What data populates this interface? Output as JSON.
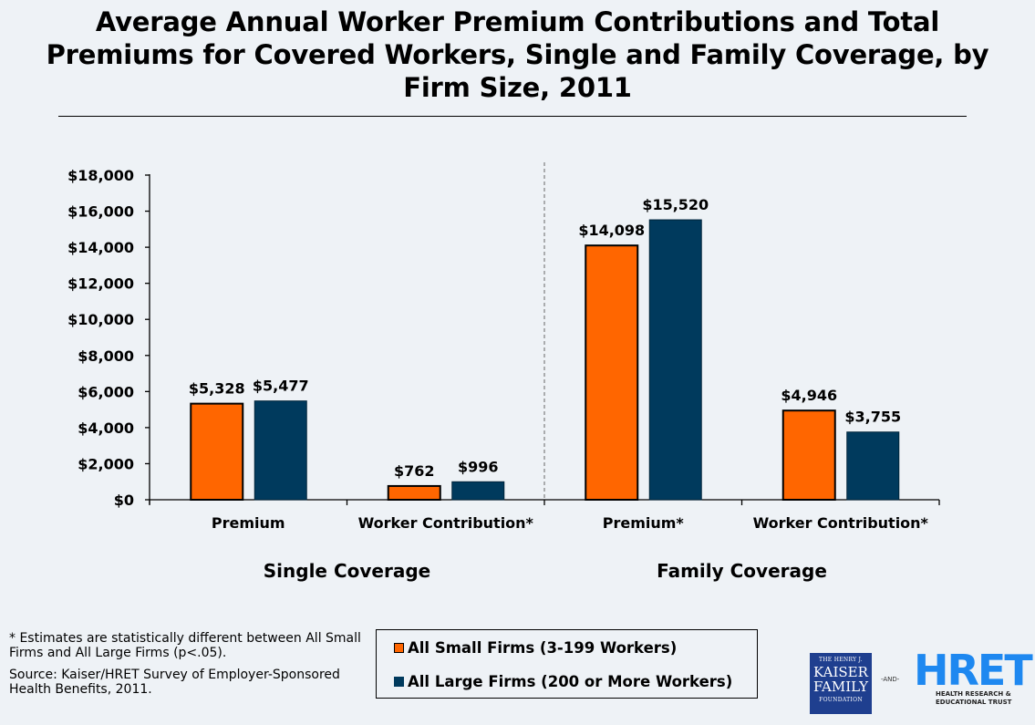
{
  "chart_data": {
    "type": "bar",
    "title": "Average Annual Worker Premium Contributions and Total Premiums for Covered Workers, Single and Family Coverage, by Firm Size, 2011",
    "title_lines": [
      "Average Annual Worker Premium Contributions and Total",
      "Premiums for Covered Workers, Single and Family Coverage, by",
      "Firm Size, 2011"
    ],
    "xlabel": "",
    "ylabel": "",
    "ylim": [
      0,
      18000
    ],
    "yticks": [
      0,
      2000,
      4000,
      6000,
      8000,
      10000,
      12000,
      14000,
      16000,
      18000
    ],
    "ytick_labels": [
      "$0",
      "$2,000",
      "$4,000",
      "$6,000",
      "$8,000",
      "$10,000",
      "$12,000",
      "$14,000",
      "$16,000",
      "$18,000"
    ],
    "grid": false,
    "categories": [
      "Premium",
      "Worker Contribution*",
      "Premium*",
      "Worker Contribution*"
    ],
    "groups": [
      {
        "label": "Single Coverage",
        "categories": [
          0,
          1
        ]
      },
      {
        "label": "Family Coverage",
        "categories": [
          2,
          3
        ]
      }
    ],
    "series": [
      {
        "name": "All Small Firms (3-199 Workers)",
        "color": "#ff6600",
        "values": [
          5328,
          762,
          14098,
          4946
        ],
        "data_labels": [
          "$5,328",
          "$762",
          "$14,098",
          "$4,946"
        ]
      },
      {
        "name": "All Large Firms (200 or More Workers)",
        "color": "#003a5d",
        "values": [
          5477,
          996,
          15520,
          3755
        ],
        "data_labels": [
          "$5,477",
          "$996",
          "$15,520",
          "$3,755"
        ]
      }
    ],
    "legend_position": "bottom-center"
  },
  "footnote": {
    "asterisk_note": "* Estimates are statistically different between All Small Firms and All Large Firms (p<.05).",
    "source": "Source: Kaiser/HRET Survey of Employer-Sponsored Health Benefits, 2011."
  },
  "logos": {
    "kff": {
      "line1": "THE HENRY J.",
      "line2": "KAISER",
      "line3": "FAMILY",
      "line4": "FOUNDATION"
    },
    "and": "-AND-",
    "hret": {
      "mark": "HRET",
      "sub1": "HEALTH RESEARCH &",
      "sub2": "EDUCATIONAL TRUST"
    }
  }
}
